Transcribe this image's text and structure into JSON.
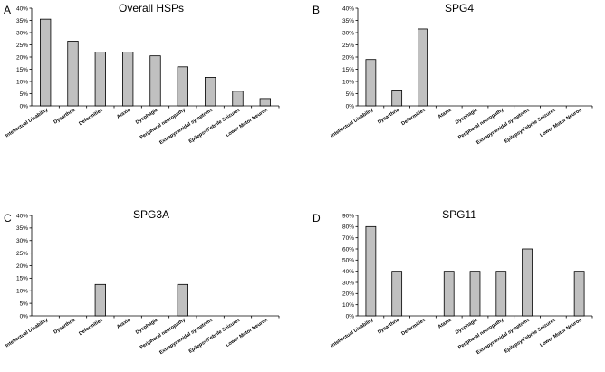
{
  "figure": {
    "categories": [
      "Intellectual Disability",
      "Dysarthria",
      "Deformities",
      "Ataxia",
      "Dysphagia",
      "Peripheral neuropathy",
      "Extrapyramidal symptoms",
      "Epilepsy/Febrile Seizures",
      "Lower Motor Neuron"
    ]
  },
  "chart_data": [
    {
      "type": "bar",
      "letter": "A",
      "title": "Overall HSPs",
      "categories": [
        "Intellectual Disability",
        "Dysarthria",
        "Deformities",
        "Ataxia",
        "Dysphagia",
        "Peripheral neuropathy",
        "Extrapyramidal symptoms",
        "Epilepsy/Febrile Seizures",
        "Lower Motor Neuron"
      ],
      "values": [
        35.5,
        26.5,
        22,
        22,
        20.5,
        16,
        11.7,
        6,
        3
      ],
      "ylim": [
        0,
        40
      ],
      "yticks": [
        0,
        5,
        10,
        15,
        20,
        25,
        30,
        35,
        40
      ],
      "ytick_labels": [
        "0%",
        "5%",
        "10%",
        "15%",
        "20%",
        "25%",
        "30%",
        "35%",
        "40%"
      ],
      "xlabel": "",
      "ylabel": ""
    },
    {
      "type": "bar",
      "letter": "B",
      "title": "SPG4",
      "categories": [
        "Intellectual Disability",
        "Dysarthria",
        "Deformities",
        "Ataxia",
        "Dysphagia",
        "Peripheral neuropathy",
        "Extrapyramidal symptoms",
        "Epilepsy/Febrile Seizures",
        "Lower Motor Neuron"
      ],
      "values": [
        19,
        6.5,
        31.5,
        0,
        0,
        0,
        0,
        0,
        0
      ],
      "ylim": [
        0,
        40
      ],
      "yticks": [
        0,
        5,
        10,
        15,
        20,
        25,
        30,
        35,
        40
      ],
      "ytick_labels": [
        "0%",
        "5%",
        "10%",
        "15%",
        "20%",
        "25%",
        "30%",
        "35%",
        "40%"
      ],
      "xlabel": "",
      "ylabel": ""
    },
    {
      "type": "bar",
      "letter": "C",
      "title": "SPG3A",
      "categories": [
        "Intellectual Disability",
        "Dysarthria",
        "Deformities",
        "Ataxia",
        "Dysphagia",
        "Peripheral neuropathy",
        "Extrapyramidal symptoms",
        "Epilepsy/Febrile Seizures",
        "Lower Motor Neuron"
      ],
      "values": [
        0,
        0,
        12.5,
        0,
        0,
        12.5,
        0,
        0,
        0
      ],
      "ylim": [
        0,
        40
      ],
      "yticks": [
        0,
        5,
        10,
        15,
        20,
        25,
        30,
        35,
        40
      ],
      "ytick_labels": [
        "0%",
        "5%",
        "10%",
        "15%",
        "20%",
        "25%",
        "30%",
        "35%",
        "40%"
      ],
      "xlabel": "",
      "ylabel": ""
    },
    {
      "type": "bar",
      "letter": "D",
      "title": "SPG11",
      "categories": [
        "Intellectual Disability",
        "Dysarthria",
        "Deformities",
        "Ataxia",
        "Dysphagia",
        "Peripheral neuropathy",
        "Extrapyramidal symptoms",
        "Epilepsy/Febrile Seizures",
        "Lower Motor Neuron"
      ],
      "values": [
        80,
        40,
        0,
        40,
        40,
        40,
        60,
        0,
        40
      ],
      "ylim": [
        0,
        90
      ],
      "yticks": [
        0,
        10,
        20,
        30,
        40,
        50,
        60,
        70,
        80,
        90
      ],
      "ytick_labels": [
        "0%",
        "10%",
        "20%",
        "30%",
        "40%",
        "50%",
        "60%",
        "70%",
        "80%",
        "90%"
      ],
      "xlabel": "",
      "ylabel": ""
    }
  ]
}
